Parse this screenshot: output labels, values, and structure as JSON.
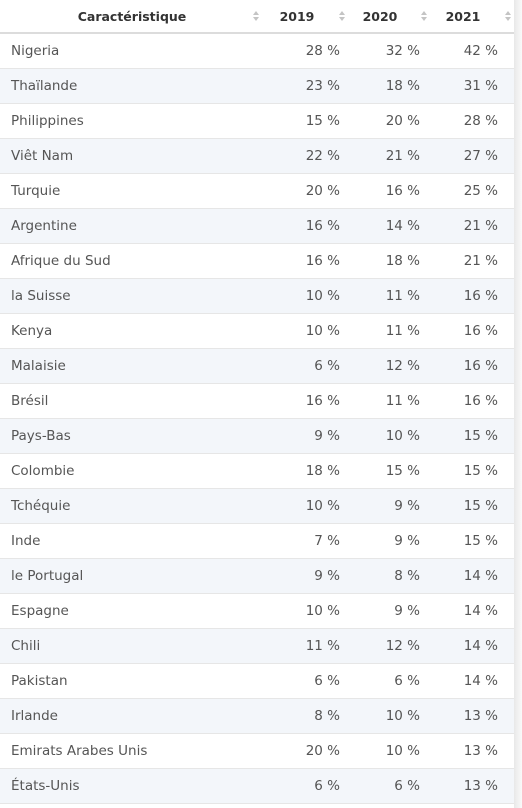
{
  "table": {
    "header": [
      "Caractéristique",
      "2019",
      "2020",
      "2021"
    ],
    "rows": [
      [
        "Nigeria",
        "28 %",
        "32 %",
        "42 %"
      ],
      [
        "Thaïlande",
        "23 %",
        "18 %",
        "31 %"
      ],
      [
        "Philippines",
        "15 %",
        "20 %",
        "28 %"
      ],
      [
        "Viêt Nam",
        "22 %",
        "21 %",
        "27 %"
      ],
      [
        "Turquie",
        "20 %",
        "16 %",
        "25 %"
      ],
      [
        "Argentine",
        "16 %",
        "14 %",
        "21 %"
      ],
      [
        "Afrique du Sud",
        "16 %",
        "18 %",
        "21 %"
      ],
      [
        "la Suisse",
        "10 %",
        "11 %",
        "16 %"
      ],
      [
        "Kenya",
        "10 %",
        "11 %",
        "16 %"
      ],
      [
        "Malaisie",
        "6 %",
        "12 %",
        "16 %"
      ],
      [
        "Brésil",
        "16 %",
        "11 %",
        "16 %"
      ],
      [
        "Pays-Bas",
        "9 %",
        "10 %",
        "15 %"
      ],
      [
        "Colombie",
        "18 %",
        "15 %",
        "15 %"
      ],
      [
        "Tchéquie",
        "10 %",
        "9 %",
        "15 %"
      ],
      [
        "Inde",
        "7 %",
        "9 %",
        "15 %"
      ],
      [
        "le Portugal",
        "9 %",
        "8 %",
        "14 %"
      ],
      [
        "Espagne",
        "10 %",
        "9 %",
        "14 %"
      ],
      [
        "Chili",
        "11 %",
        "12 %",
        "14 %"
      ],
      [
        "Pakistan",
        "6 %",
        "6 %",
        "14 %"
      ],
      [
        "Irlande",
        "8 %",
        "10 %",
        "13 %"
      ],
      [
        "Emirats Arabes Unis",
        "20 %",
        "10 %",
        "13 %"
      ],
      [
        "États-Unis",
        "6 %",
        "6 %",
        "13 %"
      ]
    ]
  }
}
